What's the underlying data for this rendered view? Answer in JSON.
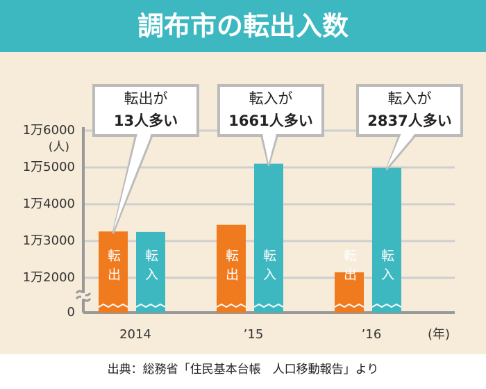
{
  "chart_data": {
    "type": "bar",
    "title": "調布市の転出入数",
    "y_unit": "(人)",
    "x_unit": "(年)",
    "source": "出典：総務省「住民基本台帳　人口移動報告」より",
    "categories": [
      "2014",
      "’15",
      "’16"
    ],
    "series": [
      {
        "name": "転出",
        "color": "#f07a1e",
        "values": [
          13260,
          13440,
          12150
        ]
      },
      {
        "name": "転入",
        "color": "#3db8c1",
        "values": [
          13247,
          15101,
          14987
        ]
      }
    ],
    "annotations": [
      {
        "lines": [
          "転出が",
          "13人多い"
        ]
      },
      {
        "lines": [
          "転入が",
          "1661人多い"
        ]
      },
      {
        "lines": [
          "転入が",
          "2837人多い"
        ]
      }
    ],
    "ylim": [
      0,
      16000
    ],
    "yticks": [
      0,
      {
        "value": 12000,
        "label": "1万2000"
      },
      {
        "value": 13000,
        "label": "1万3000"
      },
      {
        "value": 14000,
        "label": "1万4000"
      },
      {
        "value": 15000,
        "label": "1万5000"
      },
      {
        "value": 16000,
        "label": "1万6000"
      }
    ],
    "grid": true
  }
}
